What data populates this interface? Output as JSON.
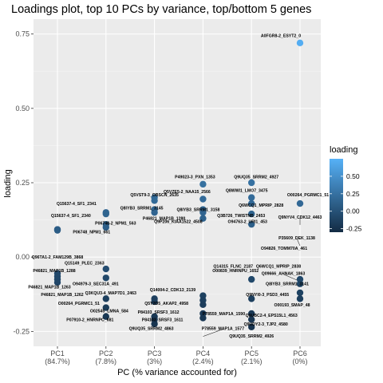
{
  "chart_data": {
    "type": "scatter",
    "title": "Loadings plot, top 10 PCs by variance, top/bottom 5 genes",
    "xlabel": "PC (% variance accounted for)",
    "ylabel": "loading",
    "categories": [
      "PC1",
      "PC2",
      "PC3",
      "PC4",
      "PC5",
      "PC6"
    ],
    "category_sublabels": [
      "(84.7%)",
      "(7.8%)",
      "(3%)",
      "(2.4%)",
      "(2.1%)",
      "(0%)"
    ],
    "ylim": [
      -0.3,
      0.8
    ],
    "yticks": [
      -0.25,
      0.0,
      0.25,
      0.5,
      0.75
    ],
    "ytick_labels": [
      "-0.25",
      "0.00",
      "0.25",
      "0.50",
      "0.75"
    ],
    "legend": {
      "title": "loading",
      "ticks": [
        0.5,
        0.25,
        0.0,
        -0.25
      ],
      "tick_labels": [
        "0.50",
        "0.25",
        "0.00",
        "-0.25"
      ],
      "range": [
        -0.3,
        0.75
      ],
      "color_low": "#132b43",
      "color_high": "#56b1f7",
      "position": "right"
    },
    "grid": true,
    "points": [
      {
        "pc": "PC1",
        "loading": 0.093
      },
      {
        "pc": "PC1",
        "loading": 0.09
      },
      {
        "pc": "PC1",
        "loading": -0.055
      },
      {
        "pc": "PC1",
        "loading": -0.065
      },
      {
        "pc": "PC1",
        "loading": -0.075
      },
      {
        "pc": "PC1",
        "loading": -0.085
      },
      {
        "pc": "PC2",
        "loading": 0.15
      },
      {
        "pc": "PC2",
        "loading": 0.145
      },
      {
        "pc": "PC2",
        "loading": 0.11
      },
      {
        "pc": "PC2",
        "loading": 0.1
      },
      {
        "pc": "PC2",
        "loading": -0.04
      },
      {
        "pc": "PC2",
        "loading": -0.07
      },
      {
        "pc": "PC2",
        "loading": -0.14
      },
      {
        "pc": "PC2",
        "loading": -0.17
      },
      {
        "pc": "PC2",
        "loading": -0.2
      },
      {
        "pc": "PC3",
        "loading": 0.2
      },
      {
        "pc": "PC3",
        "loading": 0.19
      },
      {
        "pc": "PC3",
        "loading": 0.16
      },
      {
        "pc": "PC3",
        "loading": 0.15
      },
      {
        "pc": "PC3",
        "loading": -0.14
      },
      {
        "pc": "PC3",
        "loading": -0.15
      },
      {
        "pc": "PC3",
        "loading": -0.2
      },
      {
        "pc": "PC3",
        "loading": -0.21
      },
      {
        "pc": "PC3",
        "loading": -0.225
      },
      {
        "pc": "PC4",
        "loading": 0.245
      },
      {
        "pc": "PC4",
        "loading": 0.195
      },
      {
        "pc": "PC4",
        "loading": 0.16
      },
      {
        "pc": "PC4",
        "loading": 0.15
      },
      {
        "pc": "PC4",
        "loading": 0.13
      },
      {
        "pc": "PC4",
        "loading": -0.13
      },
      {
        "pc": "PC4",
        "loading": -0.145
      },
      {
        "pc": "PC4",
        "loading": -0.16
      },
      {
        "pc": "PC4",
        "loading": -0.19
      },
      {
        "pc": "PC4",
        "loading": -0.205
      },
      {
        "pc": "PC5",
        "loading": 0.25
      },
      {
        "pc": "PC5",
        "loading": 0.2
      },
      {
        "pc": "PC5",
        "loading": 0.18
      },
      {
        "pc": "PC5",
        "loading": 0.145
      },
      {
        "pc": "PC5",
        "loading": 0.11
      },
      {
        "pc": "PC5",
        "loading": -0.075
      },
      {
        "pc": "PC5",
        "loading": -0.14
      },
      {
        "pc": "PC5",
        "loading": -0.19
      },
      {
        "pc": "PC5",
        "loading": -0.21
      },
      {
        "pc": "PC5",
        "loading": -0.235
      },
      {
        "pc": "PC6",
        "loading": 0.72
      },
      {
        "pc": "PC6",
        "loading": 0.18
      },
      {
        "pc": "PC6",
        "loading": -0.075
      },
      {
        "pc": "PC6",
        "loading": -0.09
      },
      {
        "pc": "PC6",
        "loading": -0.12
      },
      {
        "pc": "PC6",
        "loading": -0.14
      }
    ],
    "annotations": [
      {
        "text": "A0FGR8-2_ESYT2_0",
        "pc": "PC6",
        "loading": 0.745,
        "dx": -24,
        "dy": 0,
        "anchor": "middle",
        "leader": false
      },
      {
        "text": "O00264_PGRMC1_51",
        "pc": "PC6",
        "loading": 0.21,
        "dx": 10,
        "dy": 0,
        "anchor": "middle",
        "leader": false
      },
      {
        "text": "Q9NYV4_CDK12_4463",
        "pc": "PC6",
        "loading": 0.135,
        "dx": 0,
        "dy": 0,
        "anchor": "middle",
        "leader": true
      },
      {
        "text": "P35609_DEK_1138",
        "pc": "PC6",
        "loading": 0.065,
        "dx": -4,
        "dy": 0,
        "anchor": "middle",
        "leader": true
      },
      {
        "text": "O94826_TOMM70A_461",
        "pc": "PC6",
        "loading": 0.03,
        "dx": -20,
        "dy": 0,
        "anchor": "middle",
        "leader": false
      },
      {
        "text": "Q6WCQ1_MPRIP_2838",
        "pc": "PC6",
        "loading": -0.03,
        "dx": -27,
        "dy": 0,
        "anchor": "middle",
        "leader": false
      },
      {
        "text": "Q09666_AHNAK_1863",
        "pc": "PC6",
        "loading": -0.055,
        "dx": -21,
        "dy": 0,
        "anchor": "middle",
        "leader": true
      },
      {
        "text": "Q8IYB3_SRRM1_3141",
        "pc": "PC6",
        "loading": -0.09,
        "dx": -16,
        "dy": 0,
        "anchor": "middle",
        "leader": false
      },
      {
        "text": "O00193_SMAP_48",
        "pc": "PC6",
        "loading": -0.16,
        "dx": -10,
        "dy": 0,
        "anchor": "middle",
        "leader": false
      },
      {
        "text": "Q9UQ35_SRRM2_4927",
        "pc": "PC5",
        "loading": 0.27,
        "dx": 6,
        "dy": 0,
        "anchor": "middle",
        "leader": false
      },
      {
        "text": "Q8WWI1_LMO7_3475",
        "pc": "PC5",
        "loading": 0.225,
        "dx": -6,
        "dy": 0,
        "anchor": "middle",
        "leader": false
      },
      {
        "text": "Q6WCQ1_MPRIP_2828",
        "pc": "PC5",
        "loading": 0.175,
        "dx": 12,
        "dy": 0,
        "anchor": "middle",
        "leader": false
      },
      {
        "text": "Q3B726_TWISTNB_2453",
        "pc": "PC5",
        "loading": 0.14,
        "dx": -13,
        "dy": 0,
        "anchor": "middle",
        "leader": false
      },
      {
        "text": "O94763-2_URI1_453",
        "pc": "PC5",
        "loading": 0.12,
        "dx": -5,
        "dy": 0,
        "anchor": "middle",
        "leader": false
      },
      {
        "text": "Q14315_FLNC_2187",
        "pc": "PC5",
        "loading": -0.03,
        "dx": -23,
        "dy": 0,
        "anchor": "middle",
        "leader": false
      },
      {
        "text": "O00839_HNRNPU_1652",
        "pc": "PC5",
        "loading": -0.045,
        "dx": -20,
        "dy": 0,
        "anchor": "middle",
        "leader": false
      },
      {
        "text": "Q9NYI0-3_PSD3_4455",
        "pc": "PC5",
        "loading": -0.125,
        "dx": 20,
        "dy": 0,
        "anchor": "middle",
        "leader": false
      },
      {
        "text": "Q9UBC2-4_EPS15L1_4563",
        "pc": "PC5",
        "loading": -0.195,
        "dx": 25,
        "dy": 0,
        "anchor": "middle",
        "leader": false
      },
      {
        "text": "Q9UDY2-3_TJP2_4580",
        "pc": "PC5",
        "loading": -0.225,
        "dx": 18,
        "dy": 0,
        "anchor": "middle",
        "leader": false
      },
      {
        "text": "Q9UQ35_SRRM2_4926",
        "pc": "PC5",
        "loading": -0.265,
        "dx": 0,
        "dy": 0,
        "anchor": "middle",
        "leader": false
      },
      {
        "text": "P49023-3_PXN_1353",
        "pc": "PC4",
        "loading": 0.27,
        "dx": -10,
        "dy": 0,
        "anchor": "middle",
        "leader": false
      },
      {
        "text": "Q5VZE5-2_NAA15_2566",
        "pc": "PC4",
        "loading": 0.22,
        "dx": -20,
        "dy": 0,
        "anchor": "middle",
        "leader": false
      },
      {
        "text": "Q8IYB3_SRRM1_3158",
        "pc": "PC4",
        "loading": 0.16,
        "dx": -6,
        "dy": 0,
        "anchor": "middle",
        "leader": false
      },
      {
        "text": "Q9P206_KIAA1522_4508",
        "pc": "PC4",
        "loading": 0.12,
        "dx": -31,
        "dy": 0,
        "anchor": "middle",
        "leader": false
      },
      {
        "text": "Q14004-2_CDK13_2139",
        "pc": "PC4",
        "loading": -0.11,
        "dx": -38,
        "dy": 0,
        "anchor": "middle",
        "leader": false
      },
      {
        "text": "P78559_MAP1A_1590",
        "pc": "PC4",
        "loading": -0.19,
        "dx": 26,
        "dy": 0,
        "anchor": "middle",
        "leader": false
      },
      {
        "text": "P78559_MAP1A_1577",
        "pc": "PC4",
        "loading": -0.24,
        "dx": 25,
        "dy": 0,
        "anchor": "middle",
        "leader": true
      },
      {
        "text": "Q5VST9-3_OBSCN_2635",
        "pc": "PC3",
        "loading": 0.21,
        "dx": 0,
        "dy": 0,
        "anchor": "middle",
        "leader": false
      },
      {
        "text": "Q8IYB3_SRRM1_3145",
        "pc": "PC3",
        "loading": 0.165,
        "dx": -16,
        "dy": 0,
        "anchor": "middle",
        "leader": false
      },
      {
        "text": "P46821_MAP1B_1280",
        "pc": "PC3",
        "loading": 0.13,
        "dx": 12,
        "dy": 0,
        "anchor": "middle",
        "leader": false
      },
      {
        "text": "Q5Y2D5_AKAP2_4958",
        "pc": "PC3",
        "loading": -0.155,
        "dx": 15,
        "dy": 0,
        "anchor": "middle",
        "leader": false
      },
      {
        "text": "P84103_SRSF3_1612",
        "pc": "PC3",
        "loading": -0.185,
        "dx": 5,
        "dy": 0,
        "anchor": "middle",
        "leader": false
      },
      {
        "text": "P84103_SRSF3_1611",
        "pc": "PC3",
        "loading": -0.21,
        "dx": 10,
        "dy": 0,
        "anchor": "middle",
        "leader": false
      },
      {
        "text": "Q9UQ35_SRRM2_4863",
        "pc": "PC3",
        "loading": -0.24,
        "dx": -4,
        "dy": 0,
        "anchor": "middle",
        "leader": false
      },
      {
        "text": "Q15637-4_SF1_2341",
        "pc": "PC2",
        "loading": 0.18,
        "dx": -37,
        "dy": 0,
        "anchor": "middle",
        "leader": false
      },
      {
        "text": "Q15637-4_SF1_2340",
        "pc": "PC2",
        "loading": 0.14,
        "dx": -44,
        "dy": 0,
        "anchor": "middle",
        "leader": false
      },
      {
        "text": "P06748-2_NPM1_563",
        "pc": "PC2",
        "loading": 0.115,
        "dx": 12,
        "dy": 0,
        "anchor": "middle",
        "leader": false
      },
      {
        "text": "P06748_NPM1_661",
        "pc": "PC2",
        "loading": 0.085,
        "dx": -18,
        "dy": 0,
        "anchor": "middle",
        "leader": false
      },
      {
        "text": "Q15149_PLEC_2363",
        "pc": "PC2",
        "loading": -0.02,
        "dx": -27,
        "dy": 0,
        "anchor": "middle",
        "leader": false
      },
      {
        "text": "O94979-3_SEC31A_491",
        "pc": "PC2",
        "loading": -0.09,
        "dx": -13,
        "dy": 0,
        "anchor": "middle",
        "leader": false
      },
      {
        "text": "Q3KQU3-4_MAP7D1_2463",
        "pc": "PC2",
        "loading": -0.12,
        "dx": 6,
        "dy": 0,
        "anchor": "middle",
        "leader": false
      },
      {
        "text": "O00264_PGRMC1_51",
        "pc": "PC2",
        "loading": -0.155,
        "dx": -34,
        "dy": 0,
        "anchor": "middle",
        "leader": false
      },
      {
        "text": "O02545_LMNA_584",
        "pc": "PC2",
        "loading": -0.18,
        "dx": 4,
        "dy": 0,
        "anchor": "middle",
        "leader": false
      },
      {
        "text": "P07910-2_HNRNPC_681",
        "pc": "PC2",
        "loading": -0.21,
        "dx": -20,
        "dy": 0,
        "anchor": "middle",
        "leader": false
      },
      {
        "text": "Q96TA1-2_FAM129B_3868",
        "pc": "PC1",
        "loading": 0.0,
        "dx": 0,
        "dy": 0,
        "anchor": "middle",
        "leader": false
      },
      {
        "text": "P46821_MAP1B_1288",
        "pc": "PC1",
        "loading": -0.045,
        "dx": -4,
        "dy": 0,
        "anchor": "middle",
        "leader": false
      },
      {
        "text": "P46821_MAP1B_1263",
        "pc": "PC1",
        "loading": -0.1,
        "dx": -10,
        "dy": 0,
        "anchor": "middle",
        "leader": false
      },
      {
        "text": "P46821_MAP1B_1262",
        "pc": "PC1",
        "loading": -0.125,
        "dx": 6,
        "dy": 0,
        "anchor": "middle",
        "leader": false
      }
    ]
  }
}
